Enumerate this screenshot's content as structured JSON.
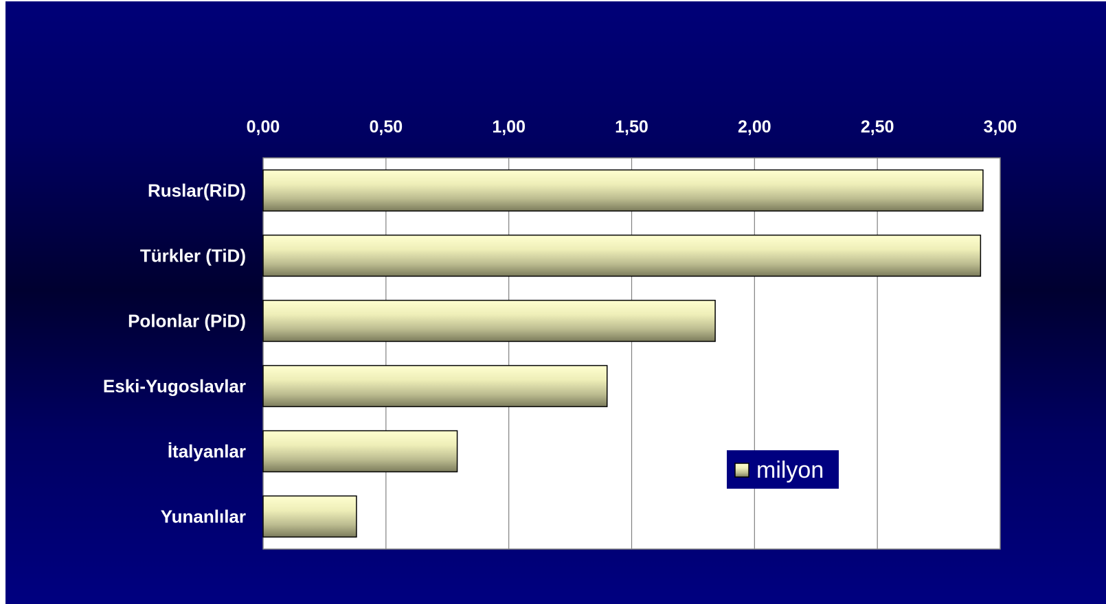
{
  "chart_data": {
    "type": "bar",
    "orientation": "horizontal",
    "categories": [
      "Ruslar(RiD)",
      "Türkler (TiD)",
      "Polonlar (PiD)",
      "Eski-Yugoslavlar",
      "İtalyanlar",
      "Yunanlılar"
    ],
    "series": [
      {
        "name": "milyon",
        "values": [
          2.93,
          2.92,
          1.84,
          1.4,
          0.79,
          0.38
        ]
      }
    ],
    "title": "",
    "xlabel": "",
    "ylabel": "",
    "xlim": [
      0,
      3
    ],
    "tick_labels": [
      "0,00",
      "0,50",
      "1,00",
      "1,50",
      "2,00",
      "2,50",
      "3,00"
    ],
    "value_axis_position": "top",
    "grid": true,
    "legend": "inside-bottom-right",
    "colors": {
      "bar_light": "#ffffc8",
      "bar_dark": "#808060",
      "plot_background": "#ffffff",
      "gridline": "#808080",
      "slide_background": "#000070",
      "legend_background": "#000080",
      "text": "#ffffff"
    }
  }
}
